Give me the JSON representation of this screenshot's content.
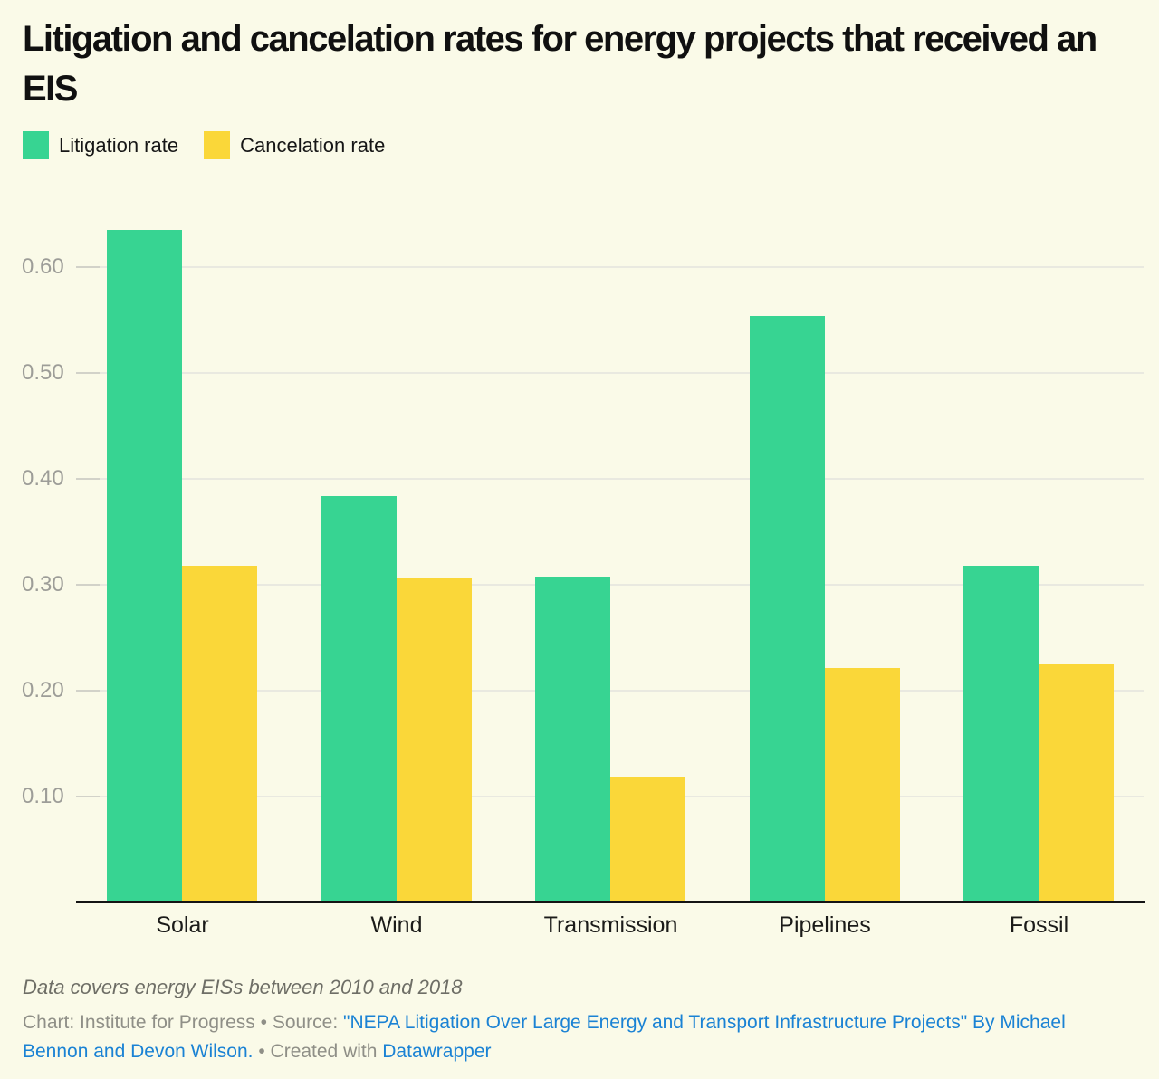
{
  "title": "Litigation and cancelation rates for energy projects that received an EIS",
  "chart_data": {
    "type": "bar",
    "categories": [
      "Solar",
      "Wind",
      "Transmission",
      "Pipelines",
      "Fossil"
    ],
    "series": [
      {
        "name": "Litigation rate",
        "color": "#37d492",
        "values": [
          0.635,
          0.384,
          0.308,
          0.554,
          0.318
        ]
      },
      {
        "name": "Cancelation rate",
        "color": "#fad739",
        "values": [
          0.318,
          0.307,
          0.119,
          0.221,
          0.226
        ]
      }
    ],
    "title": "Litigation and cancelation rates for energy projects that received an EIS",
    "xlabel": "",
    "ylabel": "",
    "yticks": [
      0.1,
      0.2,
      0.3,
      0.4,
      0.5,
      0.6
    ],
    "ylim": [
      0,
      0.65
    ],
    "grid": true,
    "legend_position": "top-left",
    "background_color": "#fafae8"
  },
  "footnote": "Data covers energy EISs between 2010 and 2018",
  "attribution": {
    "chart_credit": "Chart: Institute for Progress",
    "separator1": " • ",
    "source_label": "Source: ",
    "source_link": "\"NEPA Litigation Over Large Energy and Transport Infrastructure Projects\" By Michael Bennon and Devon Wilson.",
    "separator2": "  • ",
    "created_with": "Created with ",
    "tool_link": "Datawrapper"
  }
}
